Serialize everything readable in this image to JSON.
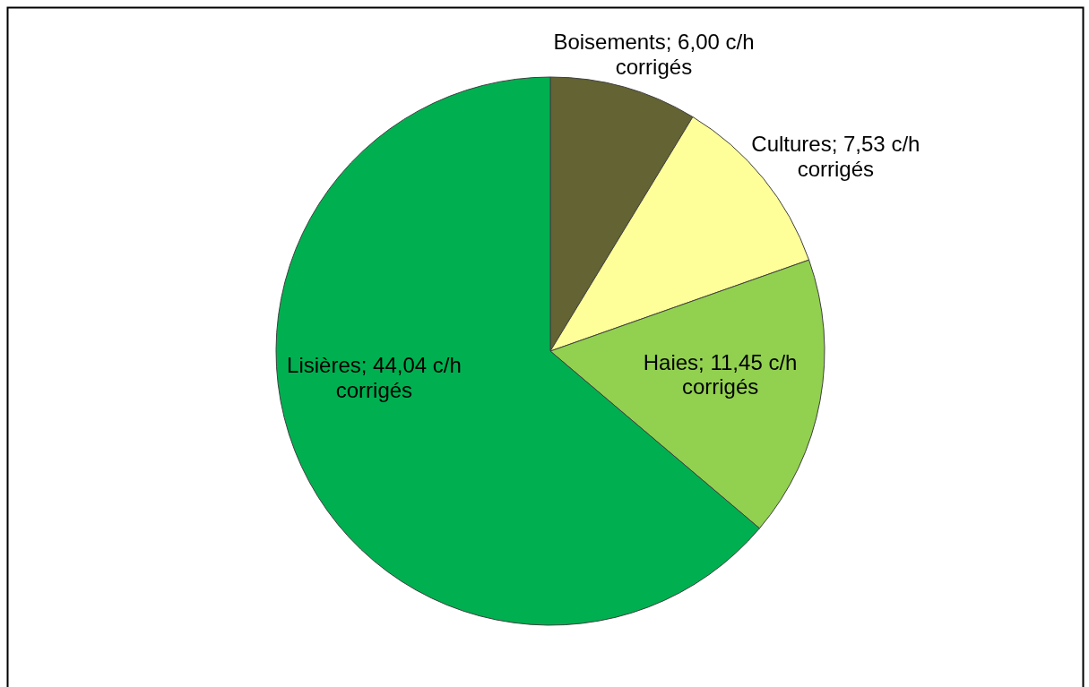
{
  "chart_data": {
    "type": "pie",
    "categories": [
      "Boisements",
      "Cultures",
      "Haies",
      "Lisières"
    ],
    "values": [
      6.0,
      7.53,
      11.45,
      44.04
    ],
    "colors": [
      "#636333",
      "#ffff99",
      "#92d050",
      "#00b050"
    ],
    "value_labels": [
      "6,00 c/h corrigés",
      "7,53 c/h corrigés",
      "11,45 c/h corrigés",
      "44,04 c/h corrigés"
    ]
  }
}
